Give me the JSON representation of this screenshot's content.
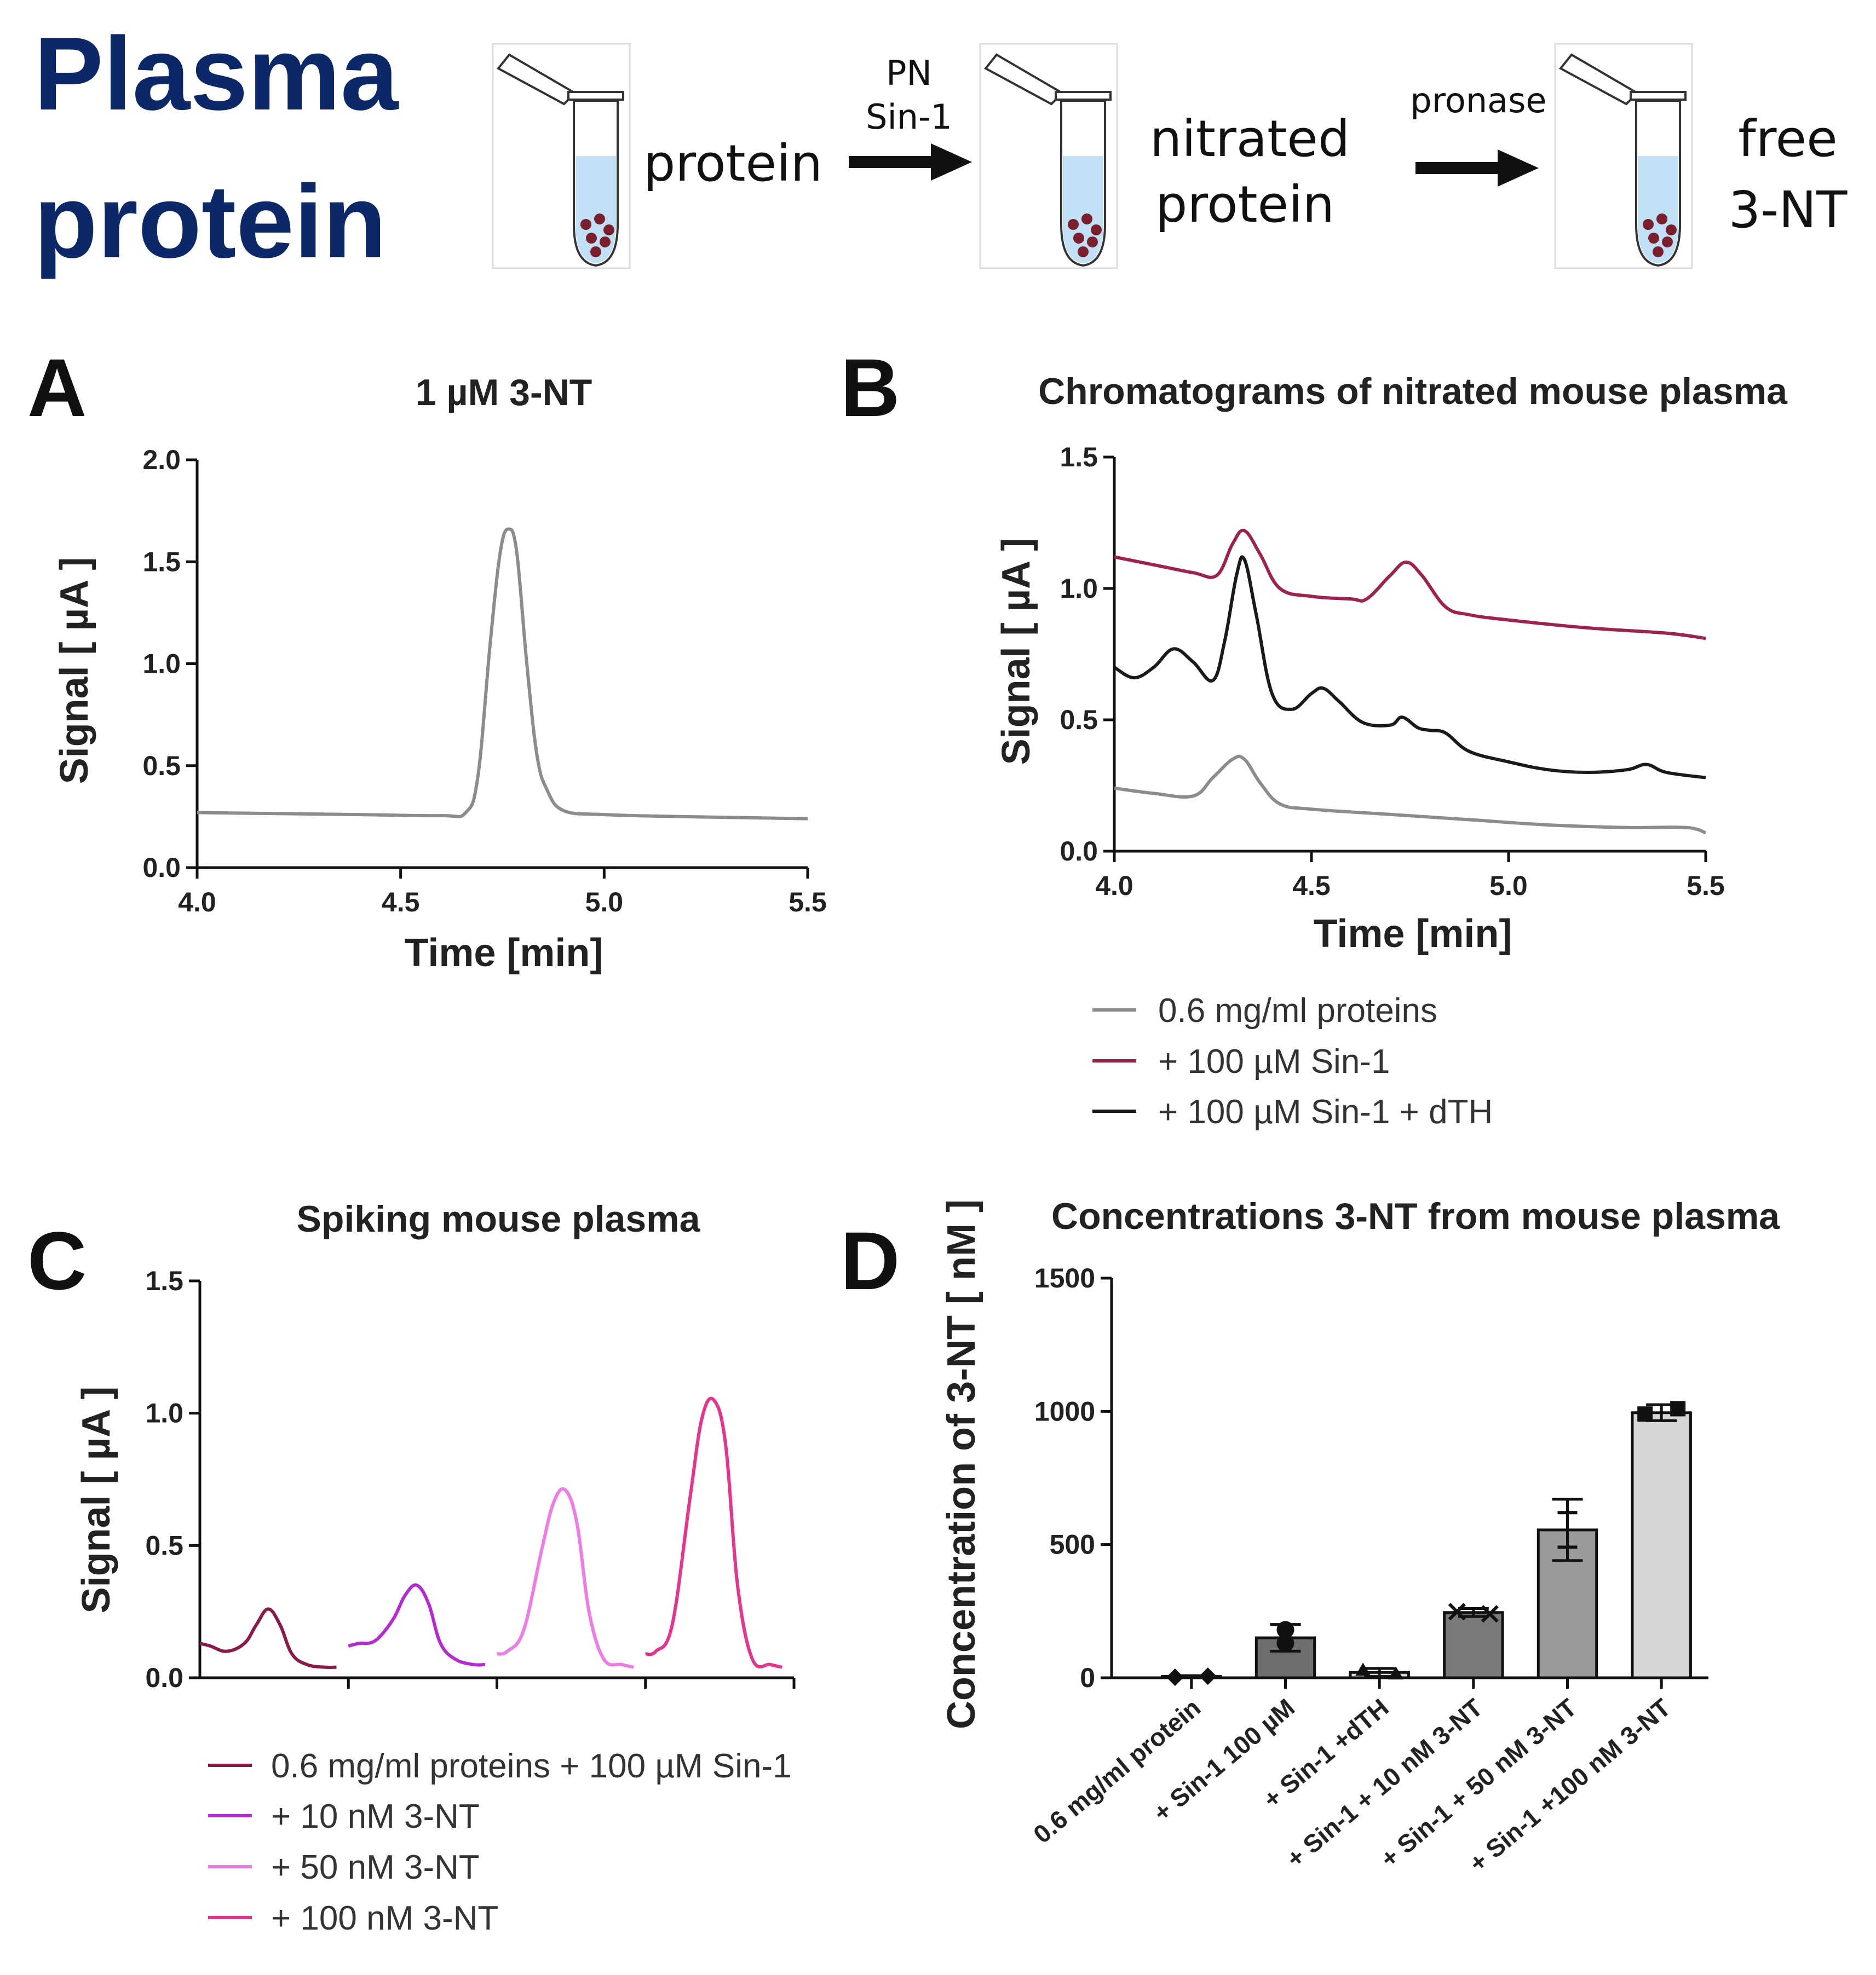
{
  "header": {
    "title_line1": "Plasma",
    "title_line2": "protein",
    "step1_label": "protein",
    "arrow1_label_line1": "PN",
    "arrow1_label_line2": "Sin-1",
    "step2_label_line1": "nitrated",
    "step2_label_line2": "protein",
    "arrow2_label": "pronase",
    "step3_label_line1": "free",
    "step3_label_line2": "3-NT",
    "colors": {
      "title": "#0c2868",
      "liquid": "#bfe0f5",
      "particles": "#7a1f2b"
    }
  },
  "panels": {
    "A": {
      "letter": "A"
    },
    "B": {
      "letter": "B"
    },
    "C": {
      "letter": "C"
    },
    "D": {
      "letter": "D"
    }
  },
  "chart_data": [
    {
      "panel": "A",
      "type": "line",
      "title": "1 µM 3-NT",
      "xlabel": "Time [min]",
      "ylabel": "Signal [ µA ]",
      "xlim": [
        4.0,
        5.5
      ],
      "ylim": [
        0.0,
        2.0
      ],
      "xticks": [
        "4.0",
        "4.5",
        "5.0",
        "5.5"
      ],
      "yticks": [
        "0.0",
        "0.5",
        "1.0",
        "1.5",
        "2.0"
      ],
      "series": [
        {
          "name": "1 µM 3-NT",
          "color": "#8c8c8c",
          "x": [
            4.0,
            4.2,
            4.4,
            4.6,
            4.66,
            4.69,
            4.72,
            4.745,
            4.765,
            4.785,
            4.81,
            4.835,
            4.86,
            4.9,
            5.0,
            5.2,
            5.5
          ],
          "y": [
            0.27,
            0.265,
            0.26,
            0.255,
            0.27,
            0.45,
            1.1,
            1.55,
            1.66,
            1.55,
            1.0,
            0.55,
            0.38,
            0.28,
            0.26,
            0.25,
            0.24
          ]
        }
      ]
    },
    {
      "panel": "B",
      "type": "line",
      "title": "Chromatograms of nitrated mouse plasma",
      "xlabel": "Time [min]",
      "ylabel": "Signal [ µA ]",
      "xlim": [
        4.0,
        5.5
      ],
      "ylim": [
        0.0,
        1.5
      ],
      "xticks": [
        "4.0",
        "4.5",
        "5.0",
        "5.5"
      ],
      "yticks": [
        "0.0",
        "0.5",
        "1.0",
        "1.5"
      ],
      "series": [
        {
          "name": "0.6 mg/ml proteins",
          "color": "#8c8c8c",
          "x": [
            4.0,
            4.1,
            4.2,
            4.25,
            4.3,
            4.33,
            4.37,
            4.42,
            4.5,
            4.7,
            4.9,
            5.1,
            5.3,
            5.45,
            5.5
          ],
          "y": [
            0.24,
            0.22,
            0.21,
            0.28,
            0.35,
            0.35,
            0.26,
            0.18,
            0.16,
            0.14,
            0.12,
            0.1,
            0.09,
            0.09,
            0.07
          ]
        },
        {
          "name": "+ 100 µM Sin-1",
          "color": "#a0204e",
          "x": [
            4.0,
            4.1,
            4.2,
            4.26,
            4.3,
            4.33,
            4.37,
            4.42,
            4.5,
            4.6,
            4.64,
            4.7,
            4.74,
            4.78,
            4.84,
            4.9,
            5.0,
            5.2,
            5.4,
            5.5
          ],
          "y": [
            1.12,
            1.09,
            1.06,
            1.05,
            1.17,
            1.22,
            1.13,
            1.0,
            0.97,
            0.96,
            0.96,
            1.05,
            1.1,
            1.05,
            0.93,
            0.9,
            0.88,
            0.85,
            0.83,
            0.81
          ]
        },
        {
          "name": "+ 100 µM Sin-1 + dTH",
          "color": "#1a1a1a",
          "x": [
            4.0,
            4.05,
            4.1,
            4.15,
            4.2,
            4.25,
            4.28,
            4.31,
            4.33,
            4.36,
            4.4,
            4.45,
            4.5,
            4.53,
            4.57,
            4.63,
            4.7,
            4.73,
            4.77,
            4.8,
            4.84,
            4.9,
            5.0,
            5.1,
            5.2,
            5.3,
            5.35,
            5.4,
            5.5
          ],
          "y": [
            0.7,
            0.66,
            0.7,
            0.77,
            0.72,
            0.65,
            0.8,
            1.05,
            1.11,
            0.9,
            0.6,
            0.54,
            0.6,
            0.62,
            0.57,
            0.49,
            0.48,
            0.51,
            0.47,
            0.46,
            0.45,
            0.38,
            0.34,
            0.31,
            0.3,
            0.31,
            0.33,
            0.3,
            0.28
          ]
        }
      ],
      "legend": [
        "0.6 mg/ml proteins",
        "+ 100 µM Sin-1",
        "+ 100 µM Sin-1 + dTH"
      ]
    },
    {
      "panel": "C",
      "type": "line",
      "title": "Spiking mouse plasma",
      "xlabel": "",
      "ylabel": "Signal [ µA ]",
      "ylim": [
        0.0,
        1.5
      ],
      "yticks": [
        "0.0",
        "0.5",
        "1.0",
        "1.5"
      ],
      "segment_x": [
        0,
        0.07,
        0.18,
        0.3,
        0.38,
        0.46,
        0.54,
        0.62,
        0.72,
        0.84,
        0.92
      ],
      "series": [
        {
          "name": "0.6 mg/ml proteins + 100 µM Sin-1",
          "color": "#8b1a4a",
          "y": [
            0.13,
            0.12,
            0.1,
            0.13,
            0.2,
            0.26,
            0.2,
            0.09,
            0.05,
            0.04,
            0.04
          ]
        },
        {
          "name": "+ 10 nM 3-NT",
          "color": "#b52ad6",
          "y": [
            0.12,
            0.13,
            0.14,
            0.22,
            0.31,
            0.35,
            0.28,
            0.13,
            0.07,
            0.05,
            0.05
          ]
        },
        {
          "name": "+ 50 nM 3-NT",
          "color": "#f07ae6",
          "y": [
            0.09,
            0.1,
            0.18,
            0.48,
            0.66,
            0.71,
            0.58,
            0.25,
            0.07,
            0.05,
            0.04
          ]
        },
        {
          "name": "+ 100 nM 3-NT",
          "color": "#e8328c",
          "y": [
            0.09,
            0.1,
            0.2,
            0.68,
            0.98,
            1.05,
            0.88,
            0.35,
            0.07,
            0.05,
            0.04
          ]
        }
      ],
      "legend": [
        "0.6 mg/ml proteins + 100 µM Sin-1",
        "+ 10 nM 3-NT",
        "+ 50 nM 3-NT",
        "+ 100 nM 3-NT"
      ]
    },
    {
      "panel": "D",
      "type": "bar",
      "title": "Concentrations 3-NT from mouse plasma",
      "xlabel": "",
      "ylabel": "Concentration of 3-NT [ nM ]",
      "ylim": [
        0,
        1500
      ],
      "yticks": [
        "0",
        "500",
        "1000",
        "1500"
      ],
      "categories": [
        "0.6 mg/ml protein",
        "+ Sin-1 100 µM",
        "+ Sin-1 +dTH",
        "+ Sin-1 + 10 nM 3-NT",
        "+ Sin-1 + 50 nM 3-NT",
        "+ Sin-1 +100 nM 3-NT"
      ],
      "values": [
        5,
        150,
        20,
        245,
        555,
        995
      ],
      "errors": [
        3,
        50,
        15,
        15,
        115,
        30
      ],
      "bar_colors": [
        "#bdbdbd",
        "#6e6e6e",
        "#d8d8d8",
        "#7a7a7a",
        "#9a9a9a",
        "#d6d6d6"
      ],
      "points": [
        [
          2,
          6
        ],
        [
          180,
          130
        ],
        [
          28,
          14
        ],
        [
          248,
          240
        ],
        [
          620,
          490
        ],
        [
          990,
          1010
        ]
      ],
      "markers": [
        "diamond",
        "circle",
        "triangle",
        "cross",
        "line",
        "square"
      ]
    }
  ]
}
